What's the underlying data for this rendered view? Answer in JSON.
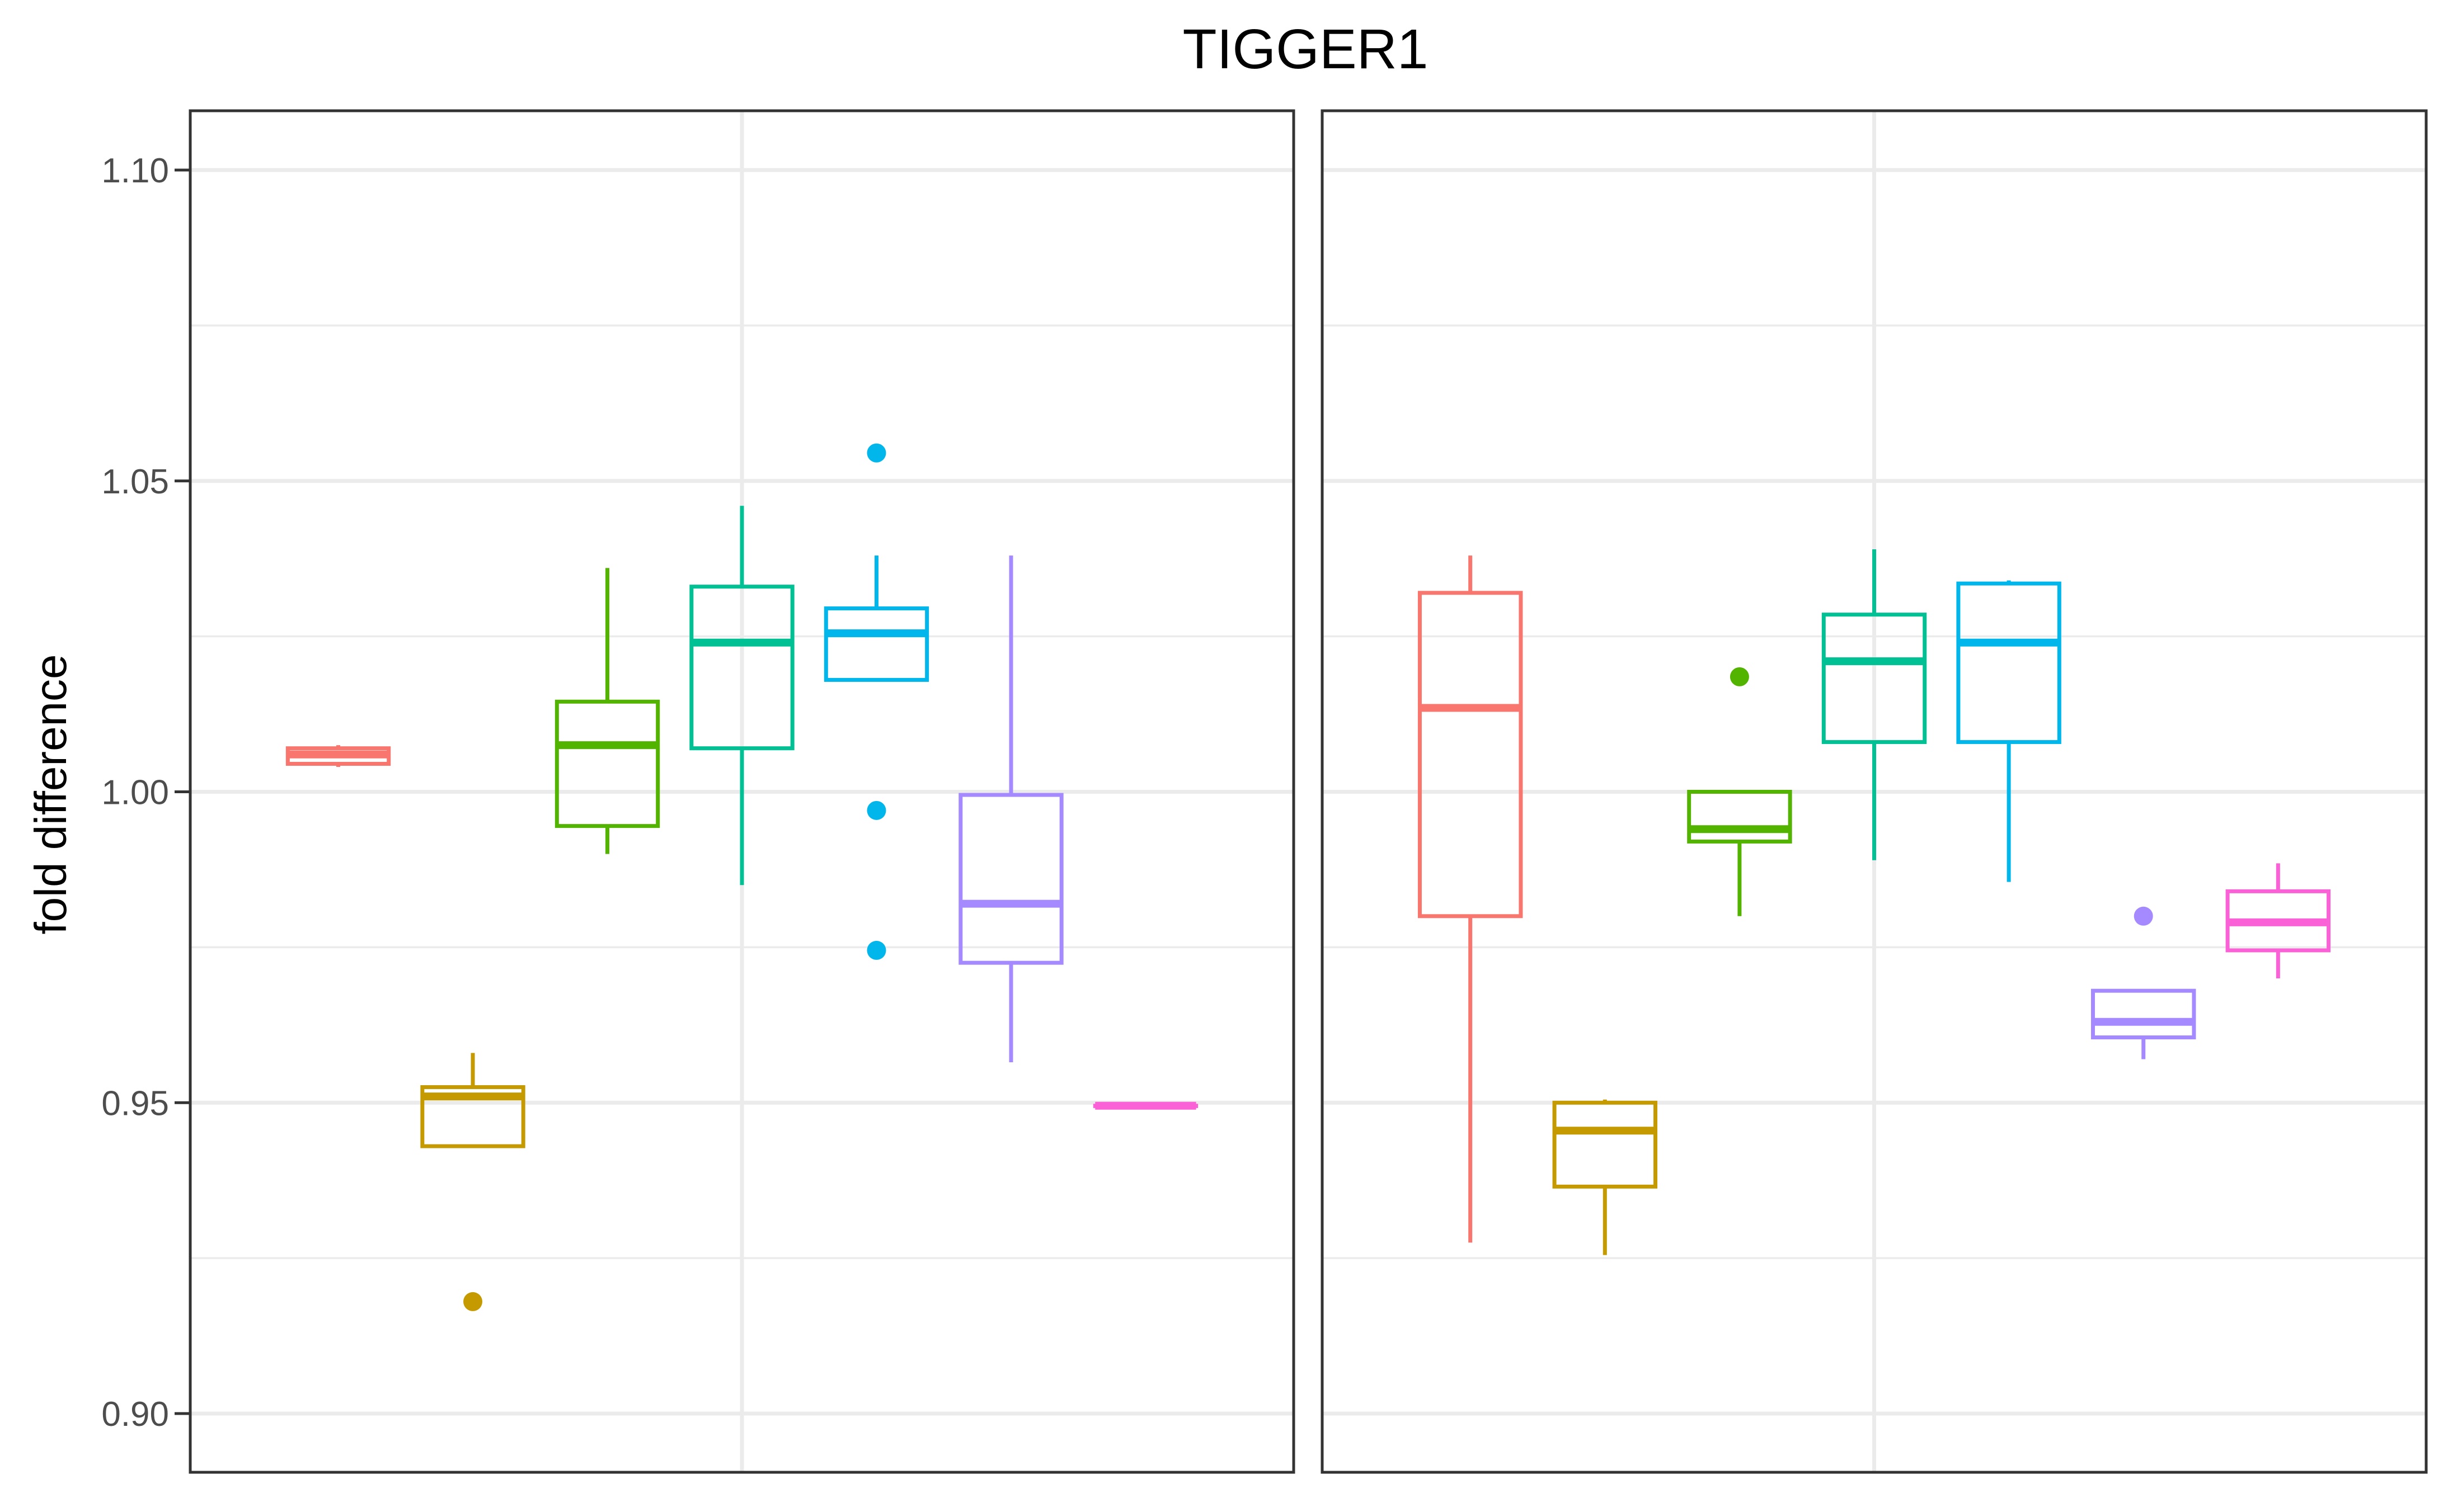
{
  "chart_data": {
    "type": "boxplot",
    "title": "TIGGER1",
    "ylabel": "fold difference",
    "xlabel": "",
    "ylim": [
      0.895,
      1.11
    ],
    "yticks": [
      "0.90",
      "0.95",
      "1.00",
      "1.05",
      "1.10"
    ],
    "grid": true,
    "legend": "none",
    "panels": [
      {
        "boxes": [
          {
            "color": "#F8766D",
            "whisker_low": 1.004,
            "q1": 1.0045,
            "median": 1.006,
            "q3": 1.007,
            "whisker_high": 1.0075,
            "outliers": []
          },
          {
            "color": "#C49A00",
            "whisker_low": 0.943,
            "q1": 0.943,
            "median": 0.951,
            "q3": 0.9525,
            "whisker_high": 0.958,
            "outliers": [
              0.918
            ]
          },
          {
            "color": "#53B400",
            "whisker_low": 0.99,
            "q1": 0.9945,
            "median": 1.0075,
            "q3": 1.0145,
            "whisker_high": 1.036,
            "outliers": []
          },
          {
            "color": "#00C094",
            "whisker_low": 0.985,
            "q1": 1.007,
            "median": 1.024,
            "q3": 1.033,
            "whisker_high": 1.046,
            "outliers": []
          },
          {
            "color": "#00B6EB",
            "whisker_low": 1.018,
            "q1": 1.018,
            "median": 1.0255,
            "q3": 1.0295,
            "whisker_high": 1.038,
            "outliers": [
              1.0545,
              0.997,
              0.9745
            ]
          },
          {
            "color": "#A58AFF",
            "whisker_low": 0.9565,
            "q1": 0.9725,
            "median": 0.982,
            "q3": 0.9995,
            "whisker_high": 1.038,
            "outliers": []
          },
          {
            "color": "#FB61D7",
            "whisker_low": 0.9495,
            "q1": 0.9495,
            "median": 0.9495,
            "q3": 0.9495,
            "whisker_high": 0.9495,
            "outliers": []
          }
        ]
      },
      {
        "boxes": [
          {
            "color": "#F8766D",
            "whisker_low": 0.9275,
            "q1": 0.98,
            "median": 1.0135,
            "q3": 1.032,
            "whisker_high": 1.038,
            "outliers": []
          },
          {
            "color": "#C49A00",
            "whisker_low": 0.9255,
            "q1": 0.9365,
            "median": 0.9455,
            "q3": 0.95,
            "whisker_high": 0.9505,
            "outliers": []
          },
          {
            "color": "#53B400",
            "whisker_low": 0.98,
            "q1": 0.992,
            "median": 0.994,
            "q3": 1.0,
            "whisker_high": 1.0,
            "outliers": [
              1.0185
            ]
          },
          {
            "color": "#00C094",
            "whisker_low": 0.989,
            "q1": 1.008,
            "median": 1.021,
            "q3": 1.0285,
            "whisker_high": 1.039,
            "outliers": []
          },
          {
            "color": "#00B6EB",
            "whisker_low": 0.9855,
            "q1": 1.008,
            "median": 1.024,
            "q3": 1.0335,
            "whisker_high": 1.034,
            "outliers": []
          },
          {
            "color": "#A58AFF",
            "whisker_low": 0.957,
            "q1": 0.9605,
            "median": 0.963,
            "q3": 0.968,
            "whisker_high": 0.968,
            "outliers": [
              0.98
            ]
          },
          {
            "color": "#FB61D7",
            "whisker_low": 0.97,
            "q1": 0.9745,
            "median": 0.979,
            "q3": 0.984,
            "whisker_high": 0.9885,
            "outliers": []
          }
        ]
      }
    ]
  }
}
